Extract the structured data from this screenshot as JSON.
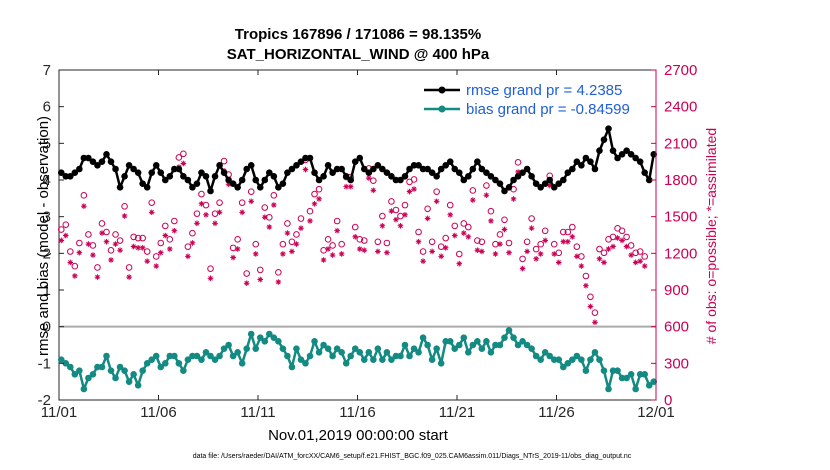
{
  "chart_data": {
    "type": "line",
    "title_line1": "Tropics 167896 / 171086 = 98.135%",
    "title_line2": "SAT_HORIZONTAL_WIND @ 400 hPa",
    "xlabel": "Nov.01,2019 00:00:00 start",
    "ylabel_left": "rmse and bias (model - observation)",
    "ylabel_right": "# of obs: o=possible; *=assimilated",
    "x_ticks": [
      "11/01",
      "11/06",
      "11/11",
      "11/16",
      "11/21",
      "11/26",
      "12/01"
    ],
    "x_range_days": [
      0,
      30
    ],
    "ylim_left": [
      -2,
      7
    ],
    "y_ticks_left": [
      "-2",
      "-1",
      "0",
      "1",
      "2",
      "3",
      "4",
      "5",
      "6",
      "7"
    ],
    "ylim_right": [
      0,
      2700
    ],
    "y_ticks_right": [
      "0",
      "300",
      "600",
      "900",
      "1200",
      "1500",
      "1800",
      "2100",
      "2400",
      "2700"
    ],
    "legend": [
      "rmse grand pr = 4.2385",
      "bias grand pr = -0.84599"
    ],
    "footer": "data file: /Users/raeder/DAI/ATM_forcXX/CAM6_setup/f.e21.FHIST_BGC.f09_025.CAM6assim.011/Diags_NTrS_2019-11/obs_diag_output.nc",
    "colors": {
      "rmse": "#000000",
      "bias": "#138a82",
      "obs": "#cc0055"
    },
    "series": [
      {
        "name": "rmse",
        "values": [
          4.2,
          4.1,
          4.1,
          4.2,
          4.3,
          4.6,
          4.6,
          4.5,
          4.4,
          4.5,
          4.7,
          4.5,
          4.3,
          3.8,
          4.1,
          4.4,
          4.3,
          4.2,
          3.9,
          3.8,
          4.2,
          4.4,
          4.2,
          4.0,
          4.1,
          4.3,
          4.3,
          4.1,
          4.0,
          3.8,
          3.9,
          4.2,
          4.1,
          3.7,
          4.1,
          4.4,
          4.2,
          4.0,
          3.9,
          3.8,
          4.0,
          4.3,
          4.4,
          4.0,
          3.8,
          4.0,
          4.2,
          4.1,
          3.8,
          3.9,
          4.2,
          4.3,
          4.4,
          4.5,
          4.6,
          4.6,
          4.2,
          4.0,
          4.1,
          4.4,
          4.2,
          4.3,
          4.3,
          4.1,
          4.0,
          4.5,
          4.6,
          4.3,
          4.2,
          4.3,
          4.4,
          4.3,
          4.2,
          4.1,
          4.0,
          4.0,
          4.1,
          4.3,
          4.4,
          4.4,
          4.3,
          4.3,
          4.2,
          4.1,
          4.3,
          4.4,
          4.5,
          4.3,
          4.2,
          4.0,
          4.1,
          4.3,
          4.5,
          4.3,
          4.2,
          4.1,
          4.0,
          3.9,
          3.7,
          3.8,
          4.0,
          4.1,
          4.2,
          4.3,
          4.1,
          3.9,
          3.8,
          3.9,
          4.0,
          3.8,
          3.9,
          4.0,
          4.2,
          4.3,
          4.5,
          4.4,
          4.6,
          4.5,
          4.3,
          4.8,
          5.1,
          5.4,
          4.8,
          4.6,
          4.7,
          4.8,
          4.7,
          4.6,
          4.5,
          4.2,
          4.0,
          4.7
        ]
      },
      {
        "name": "bias",
        "values": [
          -0.9,
          -1.0,
          -1.1,
          -1.3,
          -1.2,
          -1.7,
          -1.4,
          -1.3,
          -1.1,
          -1.1,
          -0.8,
          -1.2,
          -1.4,
          -1.1,
          -1.2,
          -1.5,
          -1.3,
          -1.6,
          -1.2,
          -1.0,
          -0.9,
          -0.8,
          -1.1,
          -1.0,
          -0.8,
          -0.8,
          -1.0,
          -1.2,
          -0.9,
          -0.8,
          -0.8,
          -0.9,
          -0.7,
          -0.8,
          -0.9,
          -0.8,
          -0.6,
          -0.5,
          -0.8,
          -0.7,
          -1.0,
          -0.6,
          -0.2,
          -0.6,
          -0.3,
          -0.4,
          -0.2,
          -0.3,
          -0.4,
          -0.6,
          -0.8,
          -1.1,
          -0.6,
          -0.9,
          -1.0,
          -0.8,
          -0.4,
          -0.7,
          -0.5,
          -0.6,
          -0.8,
          -0.6,
          -0.7,
          -1.0,
          -0.8,
          -0.6,
          -0.7,
          -0.9,
          -0.7,
          -0.9,
          -0.6,
          -0.9,
          -0.7,
          -0.9,
          -0.8,
          -0.8,
          -0.5,
          -0.8,
          -0.6,
          -0.7,
          -0.3,
          -0.5,
          -0.9,
          -0.6,
          -1.0,
          -0.4,
          -0.4,
          -0.6,
          -0.5,
          -0.3,
          -0.7,
          -0.5,
          -0.4,
          -0.6,
          -0.4,
          -0.7,
          -0.5,
          -0.5,
          -0.3,
          -0.1,
          -0.3,
          -0.5,
          -0.4,
          -0.5,
          -0.6,
          -0.8,
          -0.9,
          -0.7,
          -0.8,
          -0.9,
          -0.9,
          -1.1,
          -1.0,
          -0.9,
          -0.8,
          -0.9,
          -1.2,
          -0.9,
          -0.7,
          -0.9,
          -1.2,
          -1.7,
          -1.2,
          -1.2,
          -1.4,
          -1.4,
          -1.3,
          -1.7,
          -1.3,
          -1.3,
          -1.6,
          -1.5
        ]
      },
      {
        "name": "obs_possible",
        "values": [
          1370,
          1410,
          1190,
          1070,
          1260,
          1650,
          1330,
          1240,
          1060,
          1420,
          1350,
          1200,
          1330,
          1280,
          1560,
          1060,
          1310,
          1300,
          1300,
          1190,
          1590,
          1150,
          1260,
          1400,
          1290,
          1440,
          1960,
          1990,
          1230,
          1340,
          1500,
          1660,
          1570,
          1050,
          1500,
          1590,
          1930,
          1820,
          1220,
          1290,
          1590,
          1010,
          1680,
          1250,
          1040,
          1550,
          1470,
          1650,
          1020,
          1250,
          1420,
          1270,
          1330,
          1460,
          1940,
          1520,
          1660,
          1700,
          1200,
          1290,
          1240,
          1440,
          1250,
          1800,
          1800,
          1390,
          1290,
          1280,
          1870,
          1770,
          1270,
          1480,
          1260,
          1600,
          1530,
          1480,
          1570,
          1760,
          1780,
          1350,
          1190,
          1540,
          1270,
          1680,
          1230,
          1300,
          1570,
          1400,
          1170,
          1420,
          1390,
          1690,
          1280,
          1270,
          1730,
          1520,
          1250,
          1330,
          1450,
          1260,
          1700,
          1920,
          1130,
          1270,
          1460,
          1210,
          1250,
          1360,
          1810,
          1250,
          1180,
          1350,
          1350,
          1390,
          1230,
          1150,
          990,
          820,
          690,
          1210,
          1180,
          1290,
          1310,
          1380,
          1360,
          1310,
          1240,
          1180,
          1190,
          1150
        ]
      },
      {
        "name": "obs_assimilated",
        "values": [
          1330,
          1370,
          1150,
          1040,
          1230,
          1610,
          1300,
          1210,
          1030,
          1390,
          1320,
          1170,
          1300,
          1250,
          1530,
          1030,
          1280,
          1270,
          1270,
          1160,
          1560,
          1120,
          1230,
          1370,
          1260,
          1410,
          1930,
          1960,
          1200,
          1310,
          1470,
          1630,
          1540,
          1020,
          1470,
          1560,
          1900,
          1790,
          1190,
          1260,
          1560,
          980,
          1650,
          1220,
          1010,
          1520,
          1440,
          1620,
          990,
          1220,
          1390,
          1240,
          1300,
          1430,
          1910,
          1490,
          1630,
          1670,
          1170,
          1260,
          1210,
          1410,
          1220,
          1770,
          1770,
          1360,
          1260,
          1250,
          1840,
          1740,
          1240,
          1450,
          1230,
          1570,
          1500,
          1450,
          1540,
          1730,
          1750,
          1320,
          1160,
          1510,
          1240,
          1650,
          1200,
          1270,
          1540,
          1370,
          1140,
          1390,
          1360,
          1660,
          1250,
          1240,
          1700,
          1490,
          1220,
          1300,
          1420,
          1230,
          1670,
          1890,
          1100,
          1240,
          1430,
          1180,
          1220,
          1330,
          1780,
          1220,
          1150,
          1320,
          1320,
          1360,
          1200,
          1120,
          960,
          790,
          660,
          1180,
          1150,
          1260,
          1280,
          1350,
          1330,
          1280,
          1210,
          1150,
          1160,
          1120
        ]
      }
    ]
  }
}
